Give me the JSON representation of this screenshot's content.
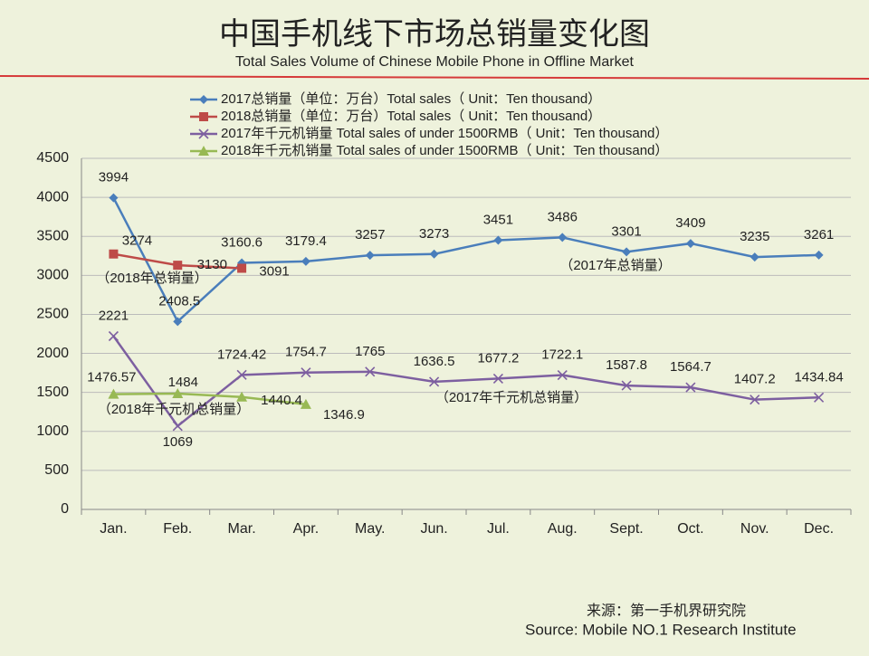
{
  "chart_data": {
    "type": "line",
    "title": "中国手机线下市场总销量变化图",
    "subtitle": "Total Sales Volume of Chinese Mobile Phone in Offline Market",
    "categories": [
      "Jan.",
      "Feb.",
      "Mar.",
      "Apr.",
      "May.",
      "Jun.",
      "Jul.",
      "Aug.",
      "Sept.",
      "Oct.",
      "Nov.",
      "Dec."
    ],
    "series": [
      {
        "name": "2017总销量（单位：万台）Total sales（ Unit：Ten thousand）",
        "color": "#4a7ebb",
        "marker": "diamond",
        "values": [
          3994,
          2408.5,
          3160.6,
          3179.4,
          3257,
          3273,
          3451,
          3486,
          3301,
          3409,
          3235,
          3261
        ]
      },
      {
        "name": "2018总销量（单位：万台）Total sales（ Unit：Ten thousand）",
        "color": "#be4b48",
        "marker": "square",
        "values": [
          3274,
          3130,
          3091,
          null,
          null,
          null,
          null,
          null,
          null,
          null,
          null,
          null
        ]
      },
      {
        "name": "2017年千元机销量 Total sales of under 1500RMB（ Unit：Ten thousand）",
        "color": "#7d5fa0",
        "marker": "x",
        "values": [
          2221,
          1069,
          1724.42,
          1754.7,
          1765,
          1636.5,
          1677.2,
          1722.1,
          1587.8,
          1564.7,
          1407.2,
          1434.84
        ]
      },
      {
        "name": "2018年千元机销量 Total sales of under 1500RMB（ Unit：Ten thousand）",
        "color": "#98b954",
        "marker": "triangle",
        "values": [
          1476.57,
          1484,
          1440.4,
          1346.9,
          null,
          null,
          null,
          null,
          null,
          null,
          null,
          null
        ]
      }
    ],
    "ylim": [
      0,
      4500
    ],
    "yticks": [
      0,
      500,
      1000,
      1500,
      2000,
      2500,
      3000,
      3500,
      4000,
      4500
    ],
    "grid": true,
    "annotations": [
      "（2018年总销量）",
      "（2017年总销量）",
      "（2017年千元机总销量）",
      "（2018年千元机总销量）"
    ],
    "source": [
      "来源：第一手机界研究院",
      "Source: Mobile NO.1 Research Institute"
    ]
  }
}
